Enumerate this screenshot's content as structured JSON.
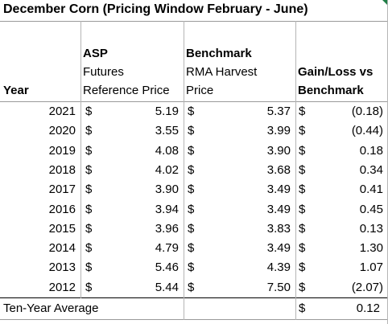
{
  "title": "December Corn (Pricing Window February - June)",
  "headers": {
    "year": "Year",
    "asp": [
      "ASP",
      "Futures",
      "Reference Price"
    ],
    "benchmark": [
      "Benchmark",
      "RMA Harvest",
      "Price"
    ],
    "gainloss": [
      "Gain/Loss vs",
      "Benchmark"
    ]
  },
  "currency": "$",
  "rows": [
    {
      "year": "2021",
      "asp": "5.19",
      "benchmark": "5.37",
      "gainloss": "(0.18)"
    },
    {
      "year": "2020",
      "asp": "3.55",
      "benchmark": "3.99",
      "gainloss": "(0.44)"
    },
    {
      "year": "2019",
      "asp": "4.08",
      "benchmark": "3.90",
      "gainloss": "0.18"
    },
    {
      "year": "2018",
      "asp": "4.02",
      "benchmark": "3.68",
      "gainloss": "0.34"
    },
    {
      "year": "2017",
      "asp": "3.90",
      "benchmark": "3.49",
      "gainloss": "0.41"
    },
    {
      "year": "2016",
      "asp": "3.94",
      "benchmark": "3.49",
      "gainloss": "0.45"
    },
    {
      "year": "2015",
      "asp": "3.96",
      "benchmark": "3.83",
      "gainloss": "0.13"
    },
    {
      "year": "2014",
      "asp": "4.79",
      "benchmark": "3.49",
      "gainloss": "1.30"
    },
    {
      "year": "2013",
      "asp": "5.46",
      "benchmark": "4.39",
      "gainloss": "1.07"
    },
    {
      "year": "2012",
      "asp": "5.44",
      "benchmark": "7.50",
      "gainloss": "(2.07)"
    }
  ],
  "summary": {
    "label": "Ten-Year Average",
    "gainloss": "0.12"
  }
}
